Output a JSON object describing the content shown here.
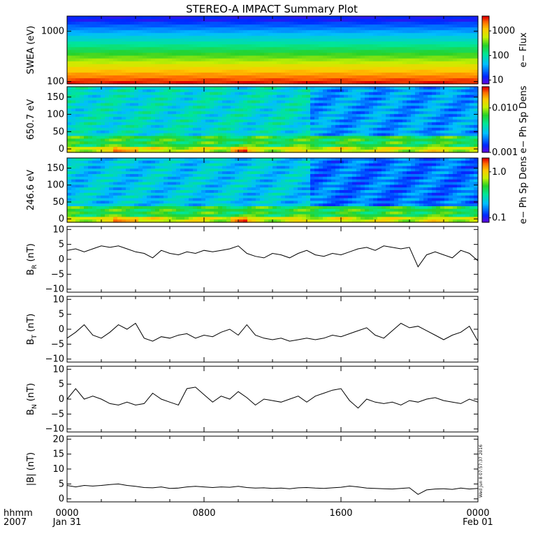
{
  "title": "STEREO-A IMPACT Summary Plot",
  "footer": {
    "time_label": "hhmm",
    "year_label": "2007",
    "x_ticks": [
      {
        "hour": 0,
        "line1": "0000",
        "line2": "Jan 31"
      },
      {
        "hour": 8,
        "line1": "0800",
        "line2": ""
      },
      {
        "hour": 16,
        "line1": "1600",
        "line2": ""
      },
      {
        "hour": 24,
        "line1": "0000",
        "line2": "Feb 01"
      }
    ],
    "stamp": "Wed Jun  8 07:57:37 2016"
  },
  "chart_data": [
    {
      "type": "heatmap",
      "id": "swea",
      "ylabel": "SWEA (eV)",
      "yscale": "log",
      "ylim": [
        90,
        2000
      ],
      "yticks": [
        100,
        1000
      ],
      "ytick_labels": [
        "100",
        "1000"
      ],
      "colorbar": {
        "label": "e− Flux",
        "scale": "log",
        "range": [
          7,
          4000
        ],
        "ticks": [
          10,
          100,
          1000
        ],
        "tick_labels": [
          "10",
          "100",
          "1000"
        ]
      },
      "description_values": {
        "flux_at_100eV": 2500,
        "flux_at_300eV": 400,
        "flux_at_1000eV": 40,
        "flux_at_2000eV": 10
      }
    },
    {
      "type": "heatmap",
      "id": "pad650",
      "ylabel": "650.7 eV",
      "ylim": [
        -10,
        180
      ],
      "yticks": [
        0,
        50,
        100,
        150
      ],
      "ytick_labels": [
        "0",
        "50",
        "100",
        "150"
      ],
      "colorbar": {
        "label": "e− Ph Sp Dens",
        "scale": "log",
        "range": [
          0.001,
          0.03
        ],
        "ticks": [
          0.001,
          0.01
        ],
        "tick_labels": [
          "0.001",
          "0.010"
        ]
      }
    },
    {
      "type": "heatmap",
      "id": "pad246",
      "ylabel": "246.6 eV",
      "ylim": [
        -10,
        180
      ],
      "yticks": [
        0,
        50,
        100,
        150
      ],
      "ytick_labels": [
        "0",
        "50",
        "100",
        "150"
      ],
      "colorbar": {
        "label": "e− Ph Sp Dens",
        "scale": "log",
        "range": [
          0.08,
          2.0
        ],
        "ticks": [
          0.1,
          1.0
        ],
        "tick_labels": [
          "0.1",
          "1.0"
        ]
      }
    },
    {
      "type": "line",
      "id": "br",
      "ylabel_main": "B",
      "ylabel_sub": "R",
      "ylabel_unit": "(nT)",
      "ylim": [
        -11,
        11
      ],
      "yticks": [
        -10,
        -5,
        0,
        5,
        10
      ],
      "ytick_labels": [
        "−10",
        "−5",
        "0",
        "5",
        "10"
      ],
      "x": [
        0,
        0.5,
        1,
        1.5,
        2,
        2.5,
        3,
        3.5,
        4,
        4.5,
        5,
        5.5,
        6,
        6.5,
        7,
        7.5,
        8,
        8.5,
        9,
        9.5,
        10,
        10.5,
        11,
        11.5,
        12,
        12.5,
        13,
        13.5,
        14,
        14.5,
        15,
        15.5,
        16,
        16.5,
        17,
        17.5,
        18,
        18.5,
        19,
        19.5,
        20,
        20.5,
        21,
        21.5,
        22,
        22.5,
        23,
        23.5,
        24
      ],
      "y": [
        3,
        3.5,
        2.5,
        3.5,
        4.5,
        4,
        4.5,
        3.5,
        2.5,
        2,
        0.5,
        3,
        2,
        1.5,
        2.5,
        2,
        3,
        2.5,
        3,
        3.5,
        4.5,
        2,
        1,
        0.5,
        2,
        1.5,
        0.5,
        2,
        3,
        1.5,
        1,
        2,
        1.5,
        2.5,
        3.5,
        4,
        3,
        4.5,
        4,
        3.5,
        4,
        -2.5,
        1.5,
        2.5,
        1.5,
        0.5,
        3,
        2,
        -0.5
      ]
    },
    {
      "type": "line",
      "id": "bt",
      "ylabel_main": "B",
      "ylabel_sub": "T",
      "ylabel_unit": "(nT)",
      "ylim": [
        -11,
        11
      ],
      "yticks": [
        -10,
        -5,
        0,
        5,
        10
      ],
      "ytick_labels": [
        "−10",
        "−5",
        "0",
        "5",
        "10"
      ],
      "x": [
        0,
        0.5,
        1,
        1.5,
        2,
        2.5,
        3,
        3.5,
        4,
        4.5,
        5,
        5.5,
        6,
        6.5,
        7,
        7.5,
        8,
        8.5,
        9,
        9.5,
        10,
        10.5,
        11,
        11.5,
        12,
        12.5,
        13,
        13.5,
        14,
        14.5,
        15,
        15.5,
        16,
        16.5,
        17,
        17.5,
        18,
        18.5,
        19,
        19.5,
        20,
        20.5,
        21,
        21.5,
        22,
        22.5,
        23,
        23.5,
        24
      ],
      "y": [
        -3,
        -1,
        1.5,
        -2,
        -3,
        -1,
        1.5,
        0,
        2,
        -3,
        -4,
        -2.5,
        -3,
        -2,
        -1.5,
        -3,
        -2,
        -2.5,
        -1,
        0,
        -2,
        1.5,
        -2,
        -3,
        -3.5,
        -3,
        -4,
        -3.5,
        -3,
        -3.5,
        -3,
        -2,
        -2.5,
        -1.5,
        -0.5,
        0.5,
        -2,
        -3,
        -0.5,
        2,
        0.5,
        1,
        -0.5,
        -2,
        -3.5,
        -2,
        -1,
        1,
        -4
      ]
    },
    {
      "type": "line",
      "id": "bn",
      "ylabel_main": "B",
      "ylabel_sub": "N",
      "ylabel_unit": "(nT)",
      "ylim": [
        -11,
        11
      ],
      "yticks": [
        -10,
        -5,
        0,
        5,
        10
      ],
      "ytick_labels": [
        "−10",
        "−5",
        "0",
        "5",
        "10"
      ],
      "x": [
        0,
        0.5,
        1,
        1.5,
        2,
        2.5,
        3,
        3.5,
        4,
        4.5,
        5,
        5.5,
        6,
        6.5,
        7,
        7.5,
        8,
        8.5,
        9,
        9.5,
        10,
        10.5,
        11,
        11.5,
        12,
        12.5,
        13,
        13.5,
        14,
        14.5,
        15,
        15.5,
        16,
        16.5,
        17,
        17.5,
        18,
        18.5,
        19,
        19.5,
        20,
        20.5,
        21,
        21.5,
        22,
        22.5,
        23,
        23.5,
        24
      ],
      "y": [
        0,
        3.5,
        0,
        1,
        0,
        -1.5,
        -2,
        -1,
        -2,
        -1.5,
        2,
        0,
        -1,
        -2,
        3.5,
        4,
        1.5,
        -1,
        1,
        0,
        2.5,
        0.5,
        -2,
        0,
        -0.5,
        -1,
        0,
        1,
        -1,
        1,
        2,
        3,
        3.5,
        -0.5,
        -3,
        0,
        -1,
        -1.5,
        -1,
        -2,
        -0.5,
        -1,
        0,
        0.5,
        -0.5,
        -1,
        -1.5,
        0,
        -1
      ]
    },
    {
      "type": "line",
      "id": "bmag",
      "ylabel_main": "|B|",
      "ylabel_sub": "",
      "ylabel_unit": "(nT)",
      "ylim": [
        -1,
        21
      ],
      "yticks": [
        0,
        5,
        10,
        15,
        20
      ],
      "ytick_labels": [
        "0",
        "5",
        "10",
        "15",
        "20"
      ],
      "x": [
        0,
        0.5,
        1,
        1.5,
        2,
        2.5,
        3,
        3.5,
        4,
        4.5,
        5,
        5.5,
        6,
        6.5,
        7,
        7.5,
        8,
        8.5,
        9,
        9.5,
        10,
        10.5,
        11,
        11.5,
        12,
        12.5,
        13,
        13.5,
        14,
        14.5,
        15,
        15.5,
        16,
        16.5,
        17,
        17.5,
        18,
        18.5,
        19,
        19.5,
        20,
        20.5,
        21,
        21.5,
        22,
        22.5,
        23,
        23.5,
        24
      ],
      "y": [
        4.5,
        4,
        4.5,
        4.3,
        4.5,
        4.8,
        5,
        4.5,
        4.2,
        3.8,
        3.7,
        4,
        3.5,
        3.6,
        4,
        4.2,
        4,
        3.8,
        4,
        3.9,
        4.2,
        3.8,
        3.6,
        3.7,
        3.5,
        3.6,
        3.4,
        3.7,
        3.8,
        3.6,
        3.5,
        3.7,
        3.9,
        4.3,
        4,
        3.6,
        3.5,
        3.4,
        3.3,
        3.5,
        3.7,
        1.5,
        3,
        3.3,
        3.4,
        3.2,
        3.6,
        3.3,
        3.5
      ]
    }
  ]
}
